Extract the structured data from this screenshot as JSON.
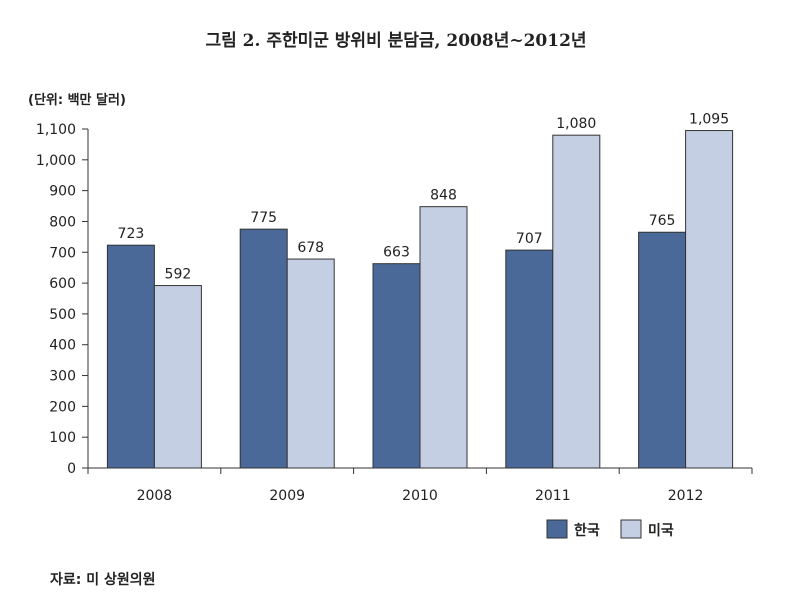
{
  "chart_data": {
    "type": "bar",
    "title": "그림 2. 주한미군 방위비 분담금, 2008년~2012년",
    "unit_label": "(단위: 백만 달러)",
    "categories": [
      "2008",
      "2009",
      "2010",
      "2011",
      "2012"
    ],
    "series": [
      {
        "name": "한국",
        "color": "#4a6898",
        "values": [
          723,
          775,
          663,
          707,
          765
        ],
        "labels": [
          "723",
          "775",
          "663",
          "707",
          "765"
        ]
      },
      {
        "name": "미국",
        "color": "#c5cfe3",
        "values": [
          592,
          678,
          848,
          1080,
          1095
        ],
        "labels": [
          "592",
          "678",
          "848",
          "1,080",
          "1,095"
        ]
      }
    ],
    "ylim": [
      0,
      1100
    ],
    "yticks": [
      0,
      100,
      200,
      300,
      400,
      500,
      600,
      700,
      800,
      900,
      1000,
      1100
    ],
    "ytick_labels": [
      "0",
      "100",
      "200",
      "300",
      "400",
      "500",
      "600",
      "700",
      "800",
      "900",
      "1,000",
      "1,100"
    ],
    "legend_position": "bottom-right",
    "grid": false,
    "source": "자료: 미 상원의원"
  }
}
